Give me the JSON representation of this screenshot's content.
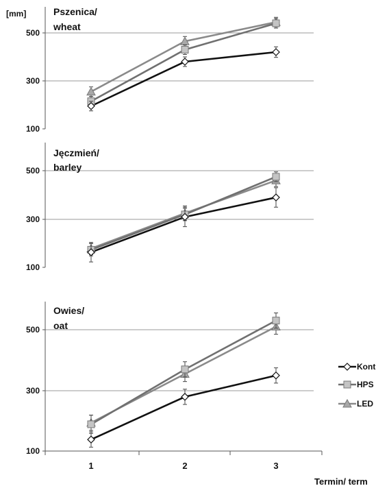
{
  "chart_data": {
    "type": "line",
    "unit_label": "[mm]",
    "xlabel": "Termin/ term",
    "x": [
      "1",
      "2",
      "3"
    ],
    "legend": [
      {
        "name": "Kont",
        "color": "#111111",
        "marker": "diamond"
      },
      {
        "name": "HPS",
        "color": "#707070",
        "marker": "square"
      },
      {
        "name": "LED",
        "color": "#8a8a8a",
        "marker": "triangle"
      }
    ],
    "panels": [
      {
        "title_line1": "Pszenica/",
        "title_line2": "wheat",
        "yticks": [
          "100",
          "300",
          "500"
        ],
        "ylim": [
          100,
          600
        ],
        "series": [
          {
            "name": "Kont",
            "values": [
              195,
              380,
              420
            ],
            "errors": [
              20,
              20,
              22
            ]
          },
          {
            "name": "HPS",
            "values": [
              215,
              430,
              540
            ],
            "errors": [
              20,
              20,
              20
            ]
          },
          {
            "name": "LED",
            "values": [
              255,
              465,
              545
            ],
            "errors": [
              20,
              20,
              20
            ]
          }
        ]
      },
      {
        "title_line1": "Jęczmień/",
        "title_line2": "barley",
        "yticks": [
          "100",
          "300",
          "500"
        ],
        "ylim": [
          100,
          600
        ],
        "series": [
          {
            "name": "Kont",
            "values": [
              165,
              310,
              390
            ],
            "errors": [
              40,
              40,
              40
            ]
          },
          {
            "name": "HPS",
            "values": [
              175,
              320,
              475
            ],
            "errors": [
              25,
              25,
              20
            ]
          },
          {
            "name": "LED",
            "values": [
              180,
              325,
              460
            ],
            "errors": [
              25,
              30,
              25
            ]
          }
        ]
      },
      {
        "title_line1": "Owies/",
        "title_line2": "oat",
        "yticks": [
          "100",
          "300",
          "500"
        ],
        "ylim": [
          100,
          600
        ],
        "series": [
          {
            "name": "Kont",
            "values": [
              140,
              280,
              350
            ],
            "errors": [
              25,
              25,
              25
            ]
          },
          {
            "name": "HPS",
            "values": [
              190,
              370,
              530
            ],
            "errors": [
              30,
              25,
              25
            ]
          },
          {
            "name": "LED",
            "values": [
              195,
              355,
              510
            ],
            "errors": [
              25,
              25,
              25
            ]
          }
        ]
      }
    ]
  }
}
